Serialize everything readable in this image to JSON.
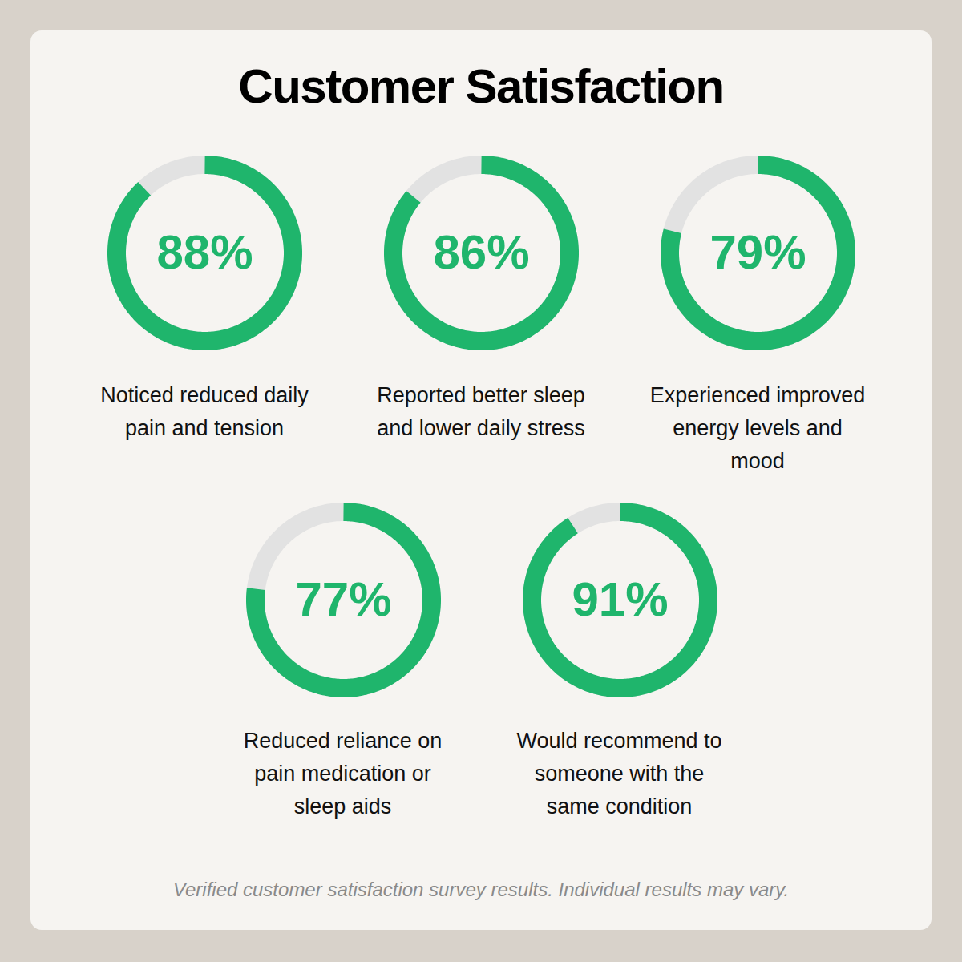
{
  "chart_data": {
    "type": "donut",
    "title": "Customer Satisfaction",
    "categories": [
      "Noticed reduced daily pain and tension",
      "Reported better sleep and lower daily stress",
      "Experienced improved energy levels and mood",
      "Reduced reliance on pain medication or sleep aids",
      "Would recommend to someone with the same condition"
    ],
    "values": [
      88,
      86,
      79,
      77,
      91
    ],
    "value_labels": [
      "88%",
      "86%",
      "79%",
      "77%",
      "91%"
    ],
    "color": "#1fb56c",
    "ylim": [
      0,
      100
    ],
    "data_labels": true,
    "tick_labels": false,
    "caption": "Verified customer satisfaction survey results. Individual results may vary."
  }
}
